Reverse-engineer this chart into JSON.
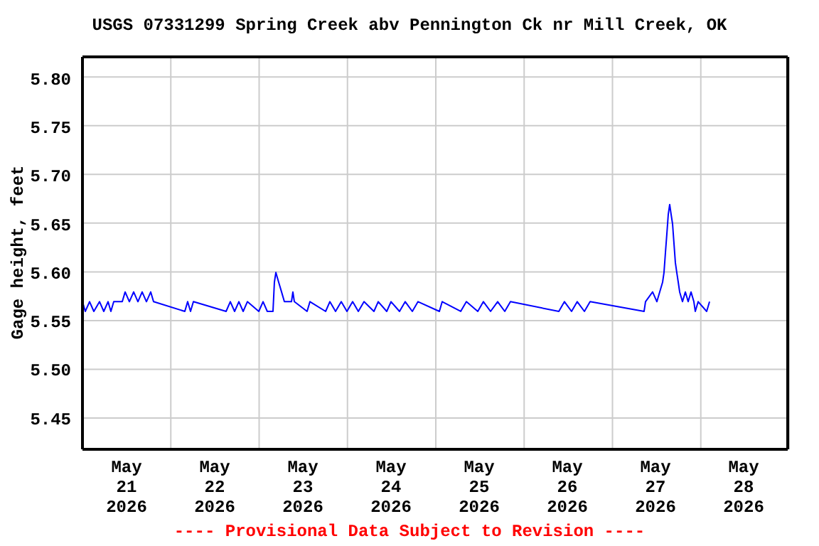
{
  "chart_data": {
    "type": "line",
    "title": "USGS 07331299 Spring Creek abv Pennington Ck nr Mill Creek, OK",
    "ylabel": "Gage height, feet",
    "annotations": [
      "---- Provisional Data Subject to Revision ----"
    ],
    "xlim": [
      "2026-05-21T00:00",
      "2026-05-29T00:00"
    ],
    "xticks": [
      {
        "value": "2026-05-21T00:00",
        "label": null
      },
      {
        "value": "2026-05-21T12:00",
        "label": "May 21 2026"
      },
      {
        "value": "2026-05-22T00:00",
        "label": null
      },
      {
        "value": "2026-05-22T12:00",
        "label": "May 22 2026"
      },
      {
        "value": "2026-05-23T00:00",
        "label": null
      },
      {
        "value": "2026-05-23T12:00",
        "label": "May 23 2026"
      },
      {
        "value": "2026-05-24T00:00",
        "label": null
      },
      {
        "value": "2026-05-24T12:00",
        "label": "May 24 2026"
      },
      {
        "value": "2026-05-25T00:00",
        "label": null
      },
      {
        "value": "2026-05-25T12:00",
        "label": "May 25 2026"
      },
      {
        "value": "2026-05-26T00:00",
        "label": null
      },
      {
        "value": "2026-05-26T12:00",
        "label": "May 26 2026"
      },
      {
        "value": "2026-05-27T00:00",
        "label": null
      },
      {
        "value": "2026-05-27T12:00",
        "label": "May 27 2026"
      },
      {
        "value": "2026-05-28T00:00",
        "label": null
      },
      {
        "value": "2026-05-28T12:00",
        "label": "May 28 2026"
      },
      {
        "value": "2026-05-29T00:00",
        "label": null
      }
    ],
    "ylim": [
      5.418,
      5.822
    ],
    "yticks": [
      {
        "value": 5.45,
        "label": "5.45"
      },
      {
        "value": 5.5,
        "label": "5.50"
      },
      {
        "value": 5.55,
        "label": "5.55"
      },
      {
        "value": 5.6,
        "label": "5.60"
      },
      {
        "value": 5.65,
        "label": "5.65"
      },
      {
        "value": 5.7,
        "label": "5.70"
      },
      {
        "value": 5.75,
        "label": "5.75"
      },
      {
        "value": 5.8,
        "label": "5.80"
      }
    ],
    "grid": true,
    "marker": "none",
    "line_style": "solid",
    "series": [
      {
        "color": "#0000ff",
        "x": [
          "2026-05-21T00:00",
          "2026-05-21T00:46",
          "2026-05-21T01:56",
          "2026-05-21T03:06",
          "2026-05-21T04:39",
          "2026-05-21T05:48",
          "2026-05-21T06:58",
          "2026-05-21T07:44",
          "2026-05-21T08:31",
          "2026-05-21T10:50",
          "2026-05-21T11:37",
          "2026-05-21T12:46",
          "2026-05-21T13:56",
          "2026-05-21T15:06",
          "2026-05-21T16:15",
          "2026-05-21T17:25",
          "2026-05-21T18:35",
          "2026-05-21T19:21",
          "2026-05-22T03:52",
          "2026-05-22T04:38",
          "2026-05-22T05:25",
          "2026-05-22T06:12",
          "2026-05-22T15:06",
          "2026-05-22T16:15",
          "2026-05-22T17:25",
          "2026-05-22T18:35",
          "2026-05-22T19:45",
          "2026-05-22T20:54",
          "2026-05-23T00:00",
          "2026-05-23T01:10",
          "2026-05-23T02:19",
          "2026-05-23T03:52",
          "2026-05-23T04:15",
          "2026-05-23T04:39",
          "2026-05-23T05:25",
          "2026-05-23T06:12",
          "2026-05-23T06:58",
          "2026-05-23T08:54",
          "2026-05-23T09:17",
          "2026-05-23T09:41",
          "2026-05-23T13:09",
          "2026-05-23T13:56",
          "2026-05-23T18:12",
          "2026-05-23T19:21",
          "2026-05-23T20:54",
          "2026-05-23T22:27",
          "2026-05-24T00:00",
          "2026-05-24T01:33",
          "2026-05-24T03:06",
          "2026-05-24T04:39",
          "2026-05-24T07:21",
          "2026-05-24T08:31",
          "2026-05-24T10:50",
          "2026-05-24T12:00",
          "2026-05-24T14:19",
          "2026-05-24T15:52",
          "2026-05-24T17:48",
          "2026-05-24T19:21",
          "2026-05-25T01:10",
          "2026-05-25T01:56",
          "2026-05-25T06:58",
          "2026-05-25T08:31",
          "2026-05-25T11:37",
          "2026-05-25T13:09",
          "2026-05-25T15:06",
          "2026-05-25T17:02",
          "2026-05-25T18:58",
          "2026-05-25T20:31",
          "2026-05-26T09:41",
          "2026-05-26T11:13",
          "2026-05-26T13:09",
          "2026-05-26T14:42",
          "2026-05-26T16:39",
          "2026-05-26T18:12",
          "2026-05-27T08:54",
          "2026-05-27T09:17",
          "2026-05-27T11:13",
          "2026-05-27T12:23",
          "2026-05-27T13:09",
          "2026-05-27T13:56",
          "2026-05-27T14:19",
          "2026-05-27T14:42",
          "2026-05-27T15:06",
          "2026-05-27T15:29",
          "2026-05-27T15:52",
          "2026-05-27T16:15",
          "2026-05-27T16:39",
          "2026-05-27T17:02",
          "2026-05-27T17:25",
          "2026-05-27T17:48",
          "2026-05-27T18:12",
          "2026-05-27T18:35",
          "2026-05-27T19:21",
          "2026-05-27T20:08",
          "2026-05-27T20:54",
          "2026-05-27T21:41",
          "2026-05-27T22:27",
          "2026-05-27T22:50",
          "2026-05-27T23:37",
          "2026-05-28T01:56",
          "2026-05-28T02:43"
        ],
        "values": [
          5.57,
          5.56,
          5.57,
          5.56,
          5.57,
          5.56,
          5.57,
          5.56,
          5.57,
          5.57,
          5.58,
          5.57,
          5.58,
          5.57,
          5.58,
          5.57,
          5.58,
          5.57,
          5.56,
          5.57,
          5.56,
          5.57,
          5.56,
          5.57,
          5.56,
          5.57,
          5.56,
          5.57,
          5.56,
          5.57,
          5.56,
          5.56,
          5.59,
          5.6,
          5.59,
          5.58,
          5.57,
          5.57,
          5.58,
          5.57,
          5.56,
          5.57,
          5.56,
          5.57,
          5.56,
          5.57,
          5.56,
          5.57,
          5.56,
          5.57,
          5.56,
          5.57,
          5.56,
          5.57,
          5.56,
          5.57,
          5.56,
          5.57,
          5.56,
          5.57,
          5.56,
          5.57,
          5.56,
          5.57,
          5.56,
          5.57,
          5.56,
          5.57,
          5.56,
          5.57,
          5.56,
          5.57,
          5.56,
          5.57,
          5.56,
          5.57,
          5.58,
          5.57,
          5.58,
          5.59,
          5.6,
          5.62,
          5.64,
          5.66,
          5.67,
          5.66,
          5.65,
          5.63,
          5.61,
          5.6,
          5.59,
          5.58,
          5.57,
          5.58,
          5.57,
          5.58,
          5.57,
          5.56,
          5.57,
          5.56,
          5.57
        ]
      }
    ]
  }
}
